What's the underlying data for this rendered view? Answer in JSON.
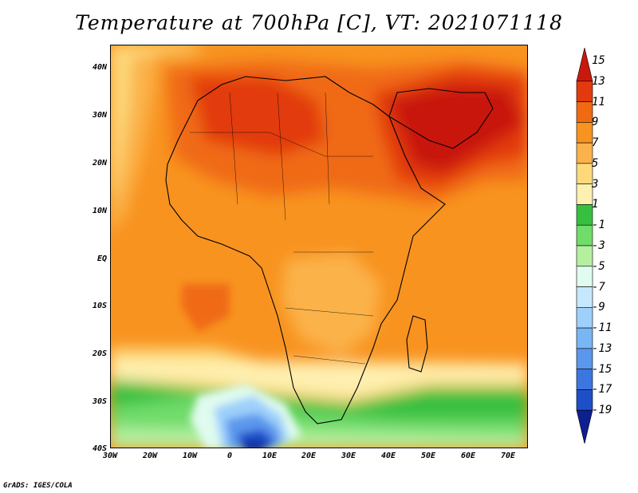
{
  "title": "Temperature at 700hPa [C], VT: 2021071118",
  "credit": "GrADS: IGES/COLA",
  "chart_data": {
    "type": "heatmap",
    "title": "Temperature at 700hPa [C], VT: 2021071118",
    "variable": "Temperature",
    "level": "700hPa",
    "units": "C",
    "valid_time": "2021071118",
    "lon_range": [
      -30,
      75
    ],
    "lat_range": [
      -40,
      45
    ],
    "x_ticks": [
      "30W",
      "20W",
      "10W",
      "0",
      "10E",
      "20E",
      "30E",
      "40E",
      "50E",
      "60E",
      "70E"
    ],
    "y_ticks": [
      "40N",
      "30N",
      "20N",
      "10N",
      "EQ",
      "10S",
      "20S",
      "30S",
      "40S"
    ],
    "colorbar_labels": [
      "15",
      "13",
      "11",
      "9",
      "7",
      "5",
      "3",
      "1",
      "-1",
      "-3",
      "-5",
      "-7",
      "-9",
      "-11",
      "-13",
      "-15",
      "-17",
      "-19"
    ],
    "colorbar_colors": [
      "#c8190f",
      "#e23a0e",
      "#f06a12",
      "#f89320",
      "#fbb24a",
      "#fdd97a",
      "#fef0b0",
      "#37c040",
      "#70dc6a",
      "#b4f0a0",
      "#e0fbef",
      "#c5e8ff",
      "#9ed0fb",
      "#79b6f4",
      "#5b97ec",
      "#3c76e0",
      "#1f4fc8",
      "#0e1f90"
    ]
  }
}
